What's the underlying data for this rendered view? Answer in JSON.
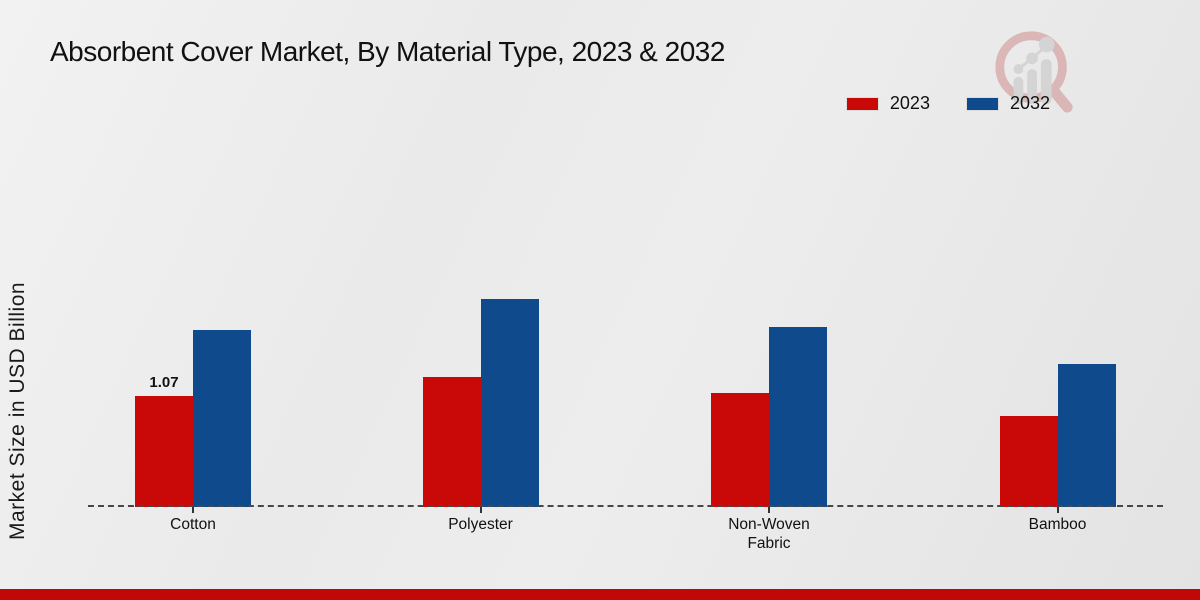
{
  "title": "Absorbent Cover Market, By Material Type, 2023 & 2032",
  "y_axis_label": "Market Size in USD Billion",
  "legend": {
    "items": [
      {
        "label": "2023",
        "color": "#c90808"
      },
      {
        "label": "2032",
        "color": "#0e4a8c"
      }
    ]
  },
  "footer": {
    "stripe_color": "#c00808"
  },
  "watermark": {
    "icon": "magnifier-bar-chart-logo"
  },
  "chart_data": {
    "type": "bar",
    "title": "Absorbent Cover Market, By Material Type, 2023 & 2032",
    "xlabel": "",
    "ylabel": "Market Size in USD Billion",
    "categories": [
      "Cotton",
      "Polyester",
      "Non-Woven Fabric",
      "Bamboo"
    ],
    "series": [
      {
        "name": "2023",
        "color": "#c90808",
        "values": [
          1.07,
          1.26,
          1.1,
          0.88
        ]
      },
      {
        "name": "2032",
        "color": "#0e4a8c",
        "values": [
          1.71,
          2.01,
          1.74,
          1.38
        ]
      }
    ],
    "bar_labels": [
      {
        "series_index": 0,
        "category_index": 0,
        "text": "1.07"
      }
    ],
    "ylim": [
      0,
      2.2
    ],
    "grid": false,
    "y_tick_labels_visible": false,
    "legend_position": "top-right",
    "baseline_style": "dashed"
  }
}
